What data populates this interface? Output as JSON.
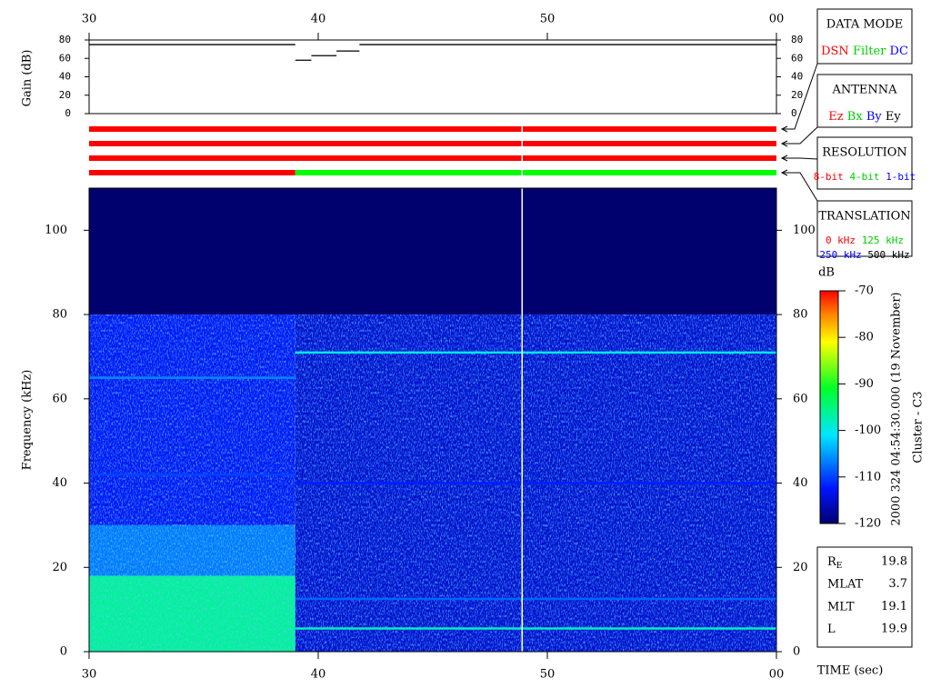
{
  "chart_data": {
    "type": "spectrogram",
    "xlim": [
      30,
      60
    ],
    "xticks": [
      30,
      40,
      50,
      {
        "value": 60,
        "label": "00"
      }
    ],
    "x_label": "TIME (sec)",
    "gain": {
      "y_label": "Gain (dB)",
      "ylim": [
        0,
        80
      ],
      "yticks": [
        0,
        20,
        40,
        60,
        80
      ],
      "color": "#000000",
      "segments": [
        {
          "t": [
            30,
            39
          ],
          "value": 75
        },
        {
          "t": [
            39,
            39.7
          ],
          "value": 58
        },
        {
          "t": [
            39.7,
            40.8
          ],
          "value": 63
        },
        {
          "t": [
            40.8,
            41.8
          ],
          "value": 68
        },
        {
          "t": [
            41.8,
            60
          ],
          "value": 75
        }
      ]
    },
    "status_rows": [
      {
        "segments": [
          {
            "t": [
              30,
              60
            ],
            "color": "#ff0000"
          }
        ]
      },
      {
        "segments": [
          {
            "t": [
              30,
              60
            ],
            "color": "#ff0000"
          }
        ]
      },
      {
        "segments": [
          {
            "t": [
              30,
              60
            ],
            "color": "#ff0000"
          }
        ]
      },
      {
        "segments": [
          {
            "t": [
              30,
              39
            ],
            "color": "#ff0000"
          },
          {
            "t": [
              39,
              60
            ],
            "color": "#00ff00"
          }
        ]
      }
    ],
    "gaps": [
      48.9
    ],
    "spectrogram": {
      "y_label": "Frequency (kHz)",
      "ylim": [
        0,
        110
      ],
      "yticks": [
        0,
        20,
        40,
        60,
        80,
        100
      ],
      "regions": [
        {
          "t": [
            30,
            60
          ],
          "f": [
            80,
            110
          ],
          "db": -120
        },
        {
          "t": [
            30,
            39
          ],
          "f": [
            30,
            80
          ],
          "db": -113
        },
        {
          "t": [
            30,
            39
          ],
          "f": [
            18,
            30
          ],
          "db": -107
        },
        {
          "t": [
            30,
            39
          ],
          "f": [
            0,
            18
          ],
          "db": -96
        },
        {
          "t": [
            39,
            60
          ],
          "f": [
            0,
            80
          ],
          "db": -115
        }
      ],
      "lines": [
        {
          "t": [
            30,
            39
          ],
          "f": 65,
          "db": -106
        },
        {
          "t": [
            30,
            39
          ],
          "f": 42,
          "db": -110
        },
        {
          "t": [
            39,
            60
          ],
          "f": 71,
          "db": -100
        },
        {
          "t": [
            39,
            60
          ],
          "f": 40,
          "db": -112
        },
        {
          "t": [
            39,
            60
          ],
          "f": 12.5,
          "db": -108
        },
        {
          "t": [
            39,
            60
          ],
          "f": 5.5,
          "db": -98
        }
      ]
    },
    "colorbar": {
      "label": "dB",
      "lim": [
        -120,
        -70
      ],
      "ticks": [
        -70,
        -80,
        -90,
        -100,
        -110,
        -120
      ]
    },
    "annotation": "2000 324 04:54:30.000 (19 November)",
    "spacecraft": "Cluster - C3"
  },
  "legend_boxes": [
    {
      "title": "DATA MODE",
      "lines": [
        [
          {
            "text": "DSN",
            "color": "#ff0000"
          },
          {
            "text": "Filter",
            "color": "#00d000"
          },
          {
            "text": "DC",
            "color": "#0000ff"
          }
        ]
      ]
    },
    {
      "title": "ANTENNA",
      "lines": [
        [
          {
            "text": "Ez",
            "color": "#ff0000"
          },
          {
            "text": "Bx",
            "color": "#00d000"
          },
          {
            "text": "By",
            "color": "#0000ff"
          },
          {
            "text": "Ey",
            "color": "#000000"
          }
        ]
      ]
    },
    {
      "title": "RESOLUTION",
      "lines": [
        [
          {
            "text": "8-bit",
            "color": "#ff0000"
          },
          {
            "text": "4-bit",
            "color": "#00d000"
          },
          {
            "text": "1-bit",
            "color": "#0000ff"
          }
        ]
      ]
    },
    {
      "title": "TRANSLATION",
      "lines": [
        [
          {
            "text": "0 kHz",
            "color": "#ff0000"
          },
          {
            "text": "125 kHz",
            "color": "#00d000"
          }
        ],
        [
          {
            "text": "250 kHz",
            "color": "#0000ff"
          },
          {
            "text": "500 kHz",
            "color": "#000000"
          }
        ]
      ]
    }
  ],
  "ephemeris": [
    {
      "label": "R",
      "sub": "E",
      "value": 19.8
    },
    {
      "label": "MLAT",
      "value": 3.7
    },
    {
      "label": "MLT",
      "value": 19.1
    },
    {
      "label": "L",
      "value": 19.9
    }
  ]
}
